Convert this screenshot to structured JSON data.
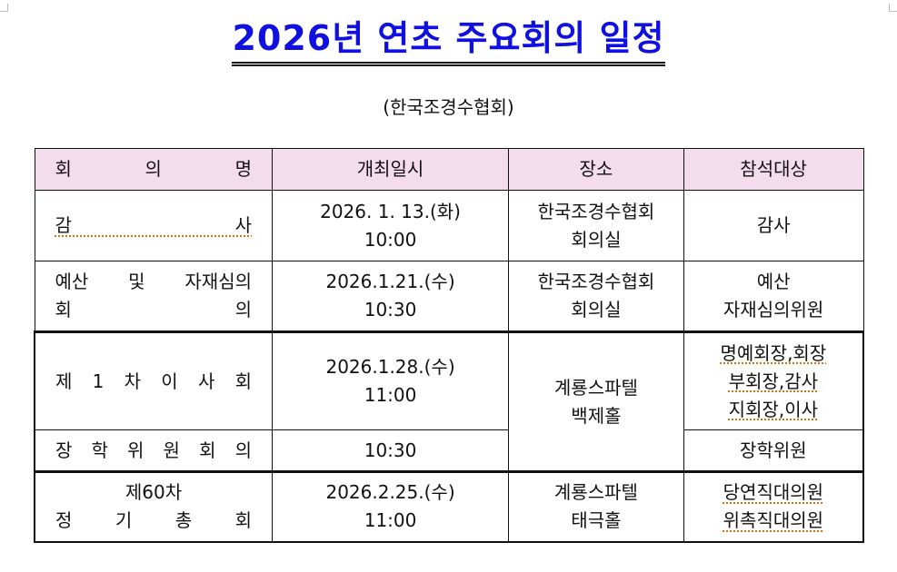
{
  "title": "2026년 연초 주요회의 일정",
  "subtitle": "(한국조경수협회)",
  "table": {
    "headers": [
      "회 의 명",
      "개최일시",
      "장소",
      "참석대상"
    ],
    "rows": [
      {
        "name": [
          "감 사"
        ],
        "date": [
          "2026. 1. 13.(화)",
          "10:00"
        ],
        "place": [
          "한국조경수협회",
          "회의실"
        ],
        "attendees": [
          "감사"
        ]
      },
      {
        "name": [
          "예산 및 자재심의",
          "회 의"
        ],
        "date": [
          "2026.1.21.(수)",
          "10:30"
        ],
        "place": [
          "한국조경수협회",
          "회의실"
        ],
        "attendees": [
          "예산",
          "자재심의위원"
        ]
      },
      {
        "name": [
          "제 1 차 이 사 회"
        ],
        "date": [
          "2026.1.28.(수)",
          "11:00"
        ],
        "place": [
          "계룡스파텔",
          "백제홀"
        ],
        "attendees": [
          "명예회장,회장",
          "부회장,감사",
          "지회장,이사"
        ]
      },
      {
        "name": [
          "장 학 위 원 회 의"
        ],
        "date": [
          "10:30"
        ],
        "attendees": [
          "장학위원"
        ]
      },
      {
        "name": [
          "제60차",
          "정 기 총 회"
        ],
        "date": [
          "2026.2.25.(수)",
          "11:00"
        ],
        "place": [
          "계룡스파텔",
          "태극홀"
        ],
        "attendees": [
          "당연직대의원",
          "위촉직대의원"
        ]
      }
    ]
  },
  "colors": {
    "title": "#1010e0",
    "header_bg": "#f3dcec"
  }
}
